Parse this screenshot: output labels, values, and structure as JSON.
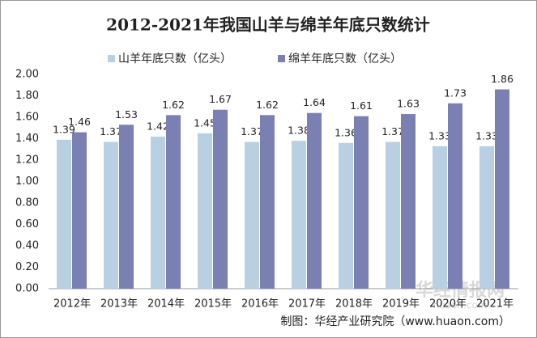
{
  "chart_data": {
    "type": "bar",
    "title": "2012-2021年我国山羊与绵羊年底只数统计",
    "categories": [
      "2012年",
      "2013年",
      "2014年",
      "2015年",
      "2016年",
      "2017年",
      "2018年",
      "2019年",
      "2020年",
      "2021年"
    ],
    "series": [
      {
        "name": "山羊年底只数（亿头）",
        "color": "#b8d0e2",
        "values": [
          1.39,
          1.37,
          1.42,
          1.45,
          1.37,
          1.38,
          1.36,
          1.37,
          1.33,
          1.33
        ]
      },
      {
        "name": "绵羊年底只数（亿头）",
        "color": "#7a80b2",
        "values": [
          1.46,
          1.53,
          1.62,
          1.67,
          1.62,
          1.64,
          1.61,
          1.63,
          1.73,
          1.86
        ]
      }
    ],
    "ylim": [
      0,
      2
    ],
    "yticks": [
      {
        "value": 0,
        "label": "0.00"
      },
      {
        "value": 0.2,
        "label": "0.20"
      },
      {
        "value": 0.4,
        "label": "0.40"
      },
      {
        "value": 0.6,
        "label": "0.60"
      },
      {
        "value": 0.8,
        "label": "0.80"
      },
      {
        "value": 1,
        "label": "1.00"
      },
      {
        "value": 1.2,
        "label": "1.20"
      },
      {
        "value": 1.4,
        "label": "1.40"
      },
      {
        "value": 1.6,
        "label": "1.60"
      },
      {
        "value": 1.8,
        "label": "1.80"
      },
      {
        "value": 2,
        "label": "2.00"
      }
    ],
    "grid": false,
    "legend": "top",
    "source": "制图：华经产业研究院（www.huaon.com）",
    "watermark": [
      "华经情报网",
      "huaon.com"
    ]
  }
}
